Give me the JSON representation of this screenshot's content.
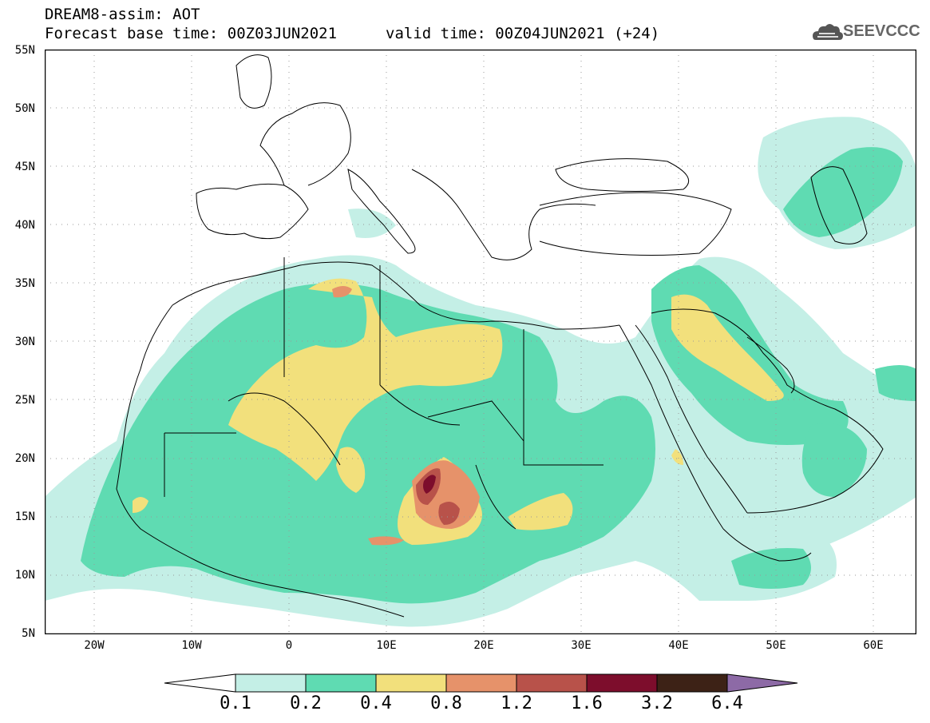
{
  "header": {
    "title": "DREAM8-assim: AOT",
    "base_time": "Forecast base time: 00Z03JUN2021",
    "valid_time": "valid time: 00Z04JUN2021 (+24)"
  },
  "logo": {
    "text": "SEEVCCC",
    "icon": "cloud-icon"
  },
  "axes": {
    "lat_labels": [
      "55N",
      "50N",
      "45N",
      "40N",
      "35N",
      "30N",
      "25N",
      "20N",
      "15N",
      "10N",
      "5N"
    ],
    "lon_labels": [
      "20W",
      "10W",
      "0",
      "10E",
      "20E",
      "30E",
      "40E",
      "50E",
      "60E"
    ]
  },
  "colorbar": {
    "labels": [
      "0.1",
      "0.2",
      "0.4",
      "0.8",
      "1.2",
      "1.6",
      "3.2",
      "6.4"
    ],
    "colors": [
      "#ffffff",
      "#c4efe6",
      "#5fdbb2",
      "#f2e07c",
      "#e6926a",
      "#b8524a",
      "#7d0d2c",
      "#3d2216",
      "#8d6aa6"
    ]
  }
}
